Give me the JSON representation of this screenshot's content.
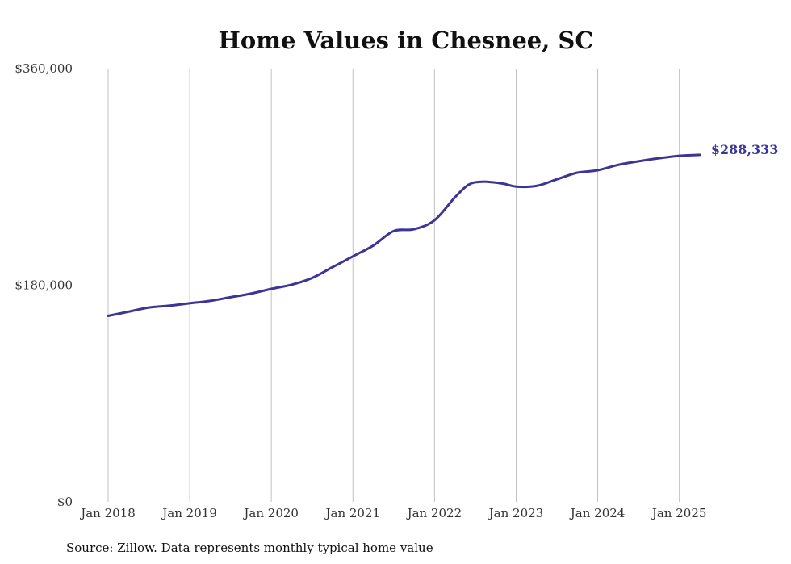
{
  "chart_data": {
    "type": "line",
    "title": "Home Values in Chesnee, SC",
    "xlabel": "",
    "ylabel": "",
    "ylim": [
      0,
      360000
    ],
    "y_ticks": [
      {
        "value": 0,
        "label": "$0"
      },
      {
        "value": 180000,
        "label": "$180,000"
      },
      {
        "value": 360000,
        "label": "$360,000"
      }
    ],
    "x_ticks": [
      {
        "value": 2018.0,
        "label": "Jan 2018"
      },
      {
        "value": 2019.0,
        "label": "Jan 2019"
      },
      {
        "value": 2020.0,
        "label": "Jan 2020"
      },
      {
        "value": 2021.0,
        "label": "Jan 2021"
      },
      {
        "value": 2022.0,
        "label": "Jan 2022"
      },
      {
        "value": 2023.0,
        "label": "Jan 2023"
      },
      {
        "value": 2024.0,
        "label": "Jan 2024"
      },
      {
        "value": 2025.0,
        "label": "Jan 2025"
      }
    ],
    "xlim": [
      2018.0,
      2025.33
    ],
    "grid": "vertical",
    "series": [
      {
        "color": "#3b3596",
        "end_label": "$288,333",
        "points": [
          {
            "date": "2018-01",
            "value": 154500
          },
          {
            "date": "2018-04",
            "value": 158000
          },
          {
            "date": "2018-07",
            "value": 161500
          },
          {
            "date": "2018-10",
            "value": 163000
          },
          {
            "date": "2019-01",
            "value": 165000
          },
          {
            "date": "2019-04",
            "value": 167000
          },
          {
            "date": "2019-07",
            "value": 170000
          },
          {
            "date": "2019-10",
            "value": 173000
          },
          {
            "date": "2020-01",
            "value": 177000
          },
          {
            "date": "2020-04",
            "value": 180500
          },
          {
            "date": "2020-07",
            "value": 186000
          },
          {
            "date": "2020-10",
            "value": 195000
          },
          {
            "date": "2021-01",
            "value": 204000
          },
          {
            "date": "2021-04",
            "value": 213000
          },
          {
            "date": "2021-07",
            "value": 225000
          },
          {
            "date": "2021-10",
            "value": 226500
          },
          {
            "date": "2022-01",
            "value": 234000
          },
          {
            "date": "2022-04",
            "value": 253000
          },
          {
            "date": "2022-06",
            "value": 263500
          },
          {
            "date": "2022-08",
            "value": 266000
          },
          {
            "date": "2022-11",
            "value": 264500
          },
          {
            "date": "2023-01",
            "value": 262000
          },
          {
            "date": "2023-04",
            "value": 262500
          },
          {
            "date": "2023-07",
            "value": 268000
          },
          {
            "date": "2023-10",
            "value": 273500
          },
          {
            "date": "2024-01",
            "value": 275500
          },
          {
            "date": "2024-04",
            "value": 280000
          },
          {
            "date": "2024-07",
            "value": 283000
          },
          {
            "date": "2024-10",
            "value": 285500
          },
          {
            "date": "2025-01",
            "value": 287500
          },
          {
            "date": "2025-04",
            "value": 288333
          }
        ]
      }
    ]
  },
  "source": "Source: Zillow. Data represents monthly typical home value"
}
